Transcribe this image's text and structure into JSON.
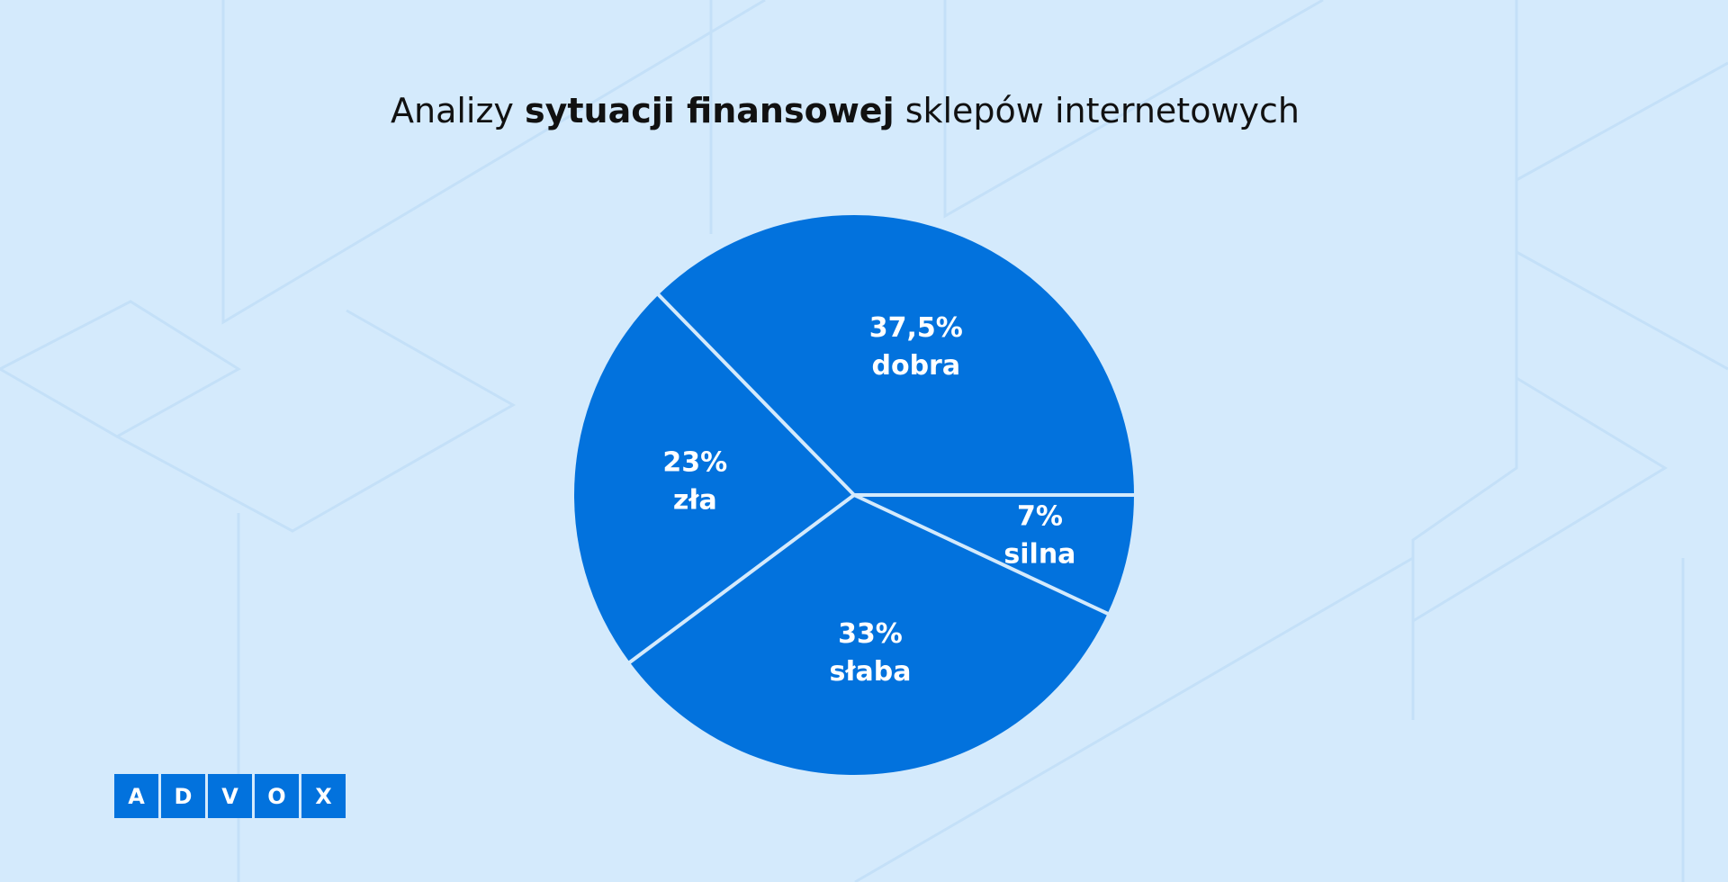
{
  "chart_data": {
    "type": "pie",
    "title": {
      "regular_start": "Analizy ",
      "bold": "sytuacji finansowej",
      "regular_end": " sklepów internetowych"
    },
    "categories": [
      "dobra",
      "silna",
      "słaba",
      "zła"
    ],
    "values": [
      37.5,
      7,
      33,
      23
    ],
    "value_labels": [
      "37,5%",
      "7%",
      "33%",
      "23%"
    ],
    "color": "#0272dd"
  },
  "logo": [
    "A",
    "D",
    "V",
    "O",
    "X"
  ]
}
